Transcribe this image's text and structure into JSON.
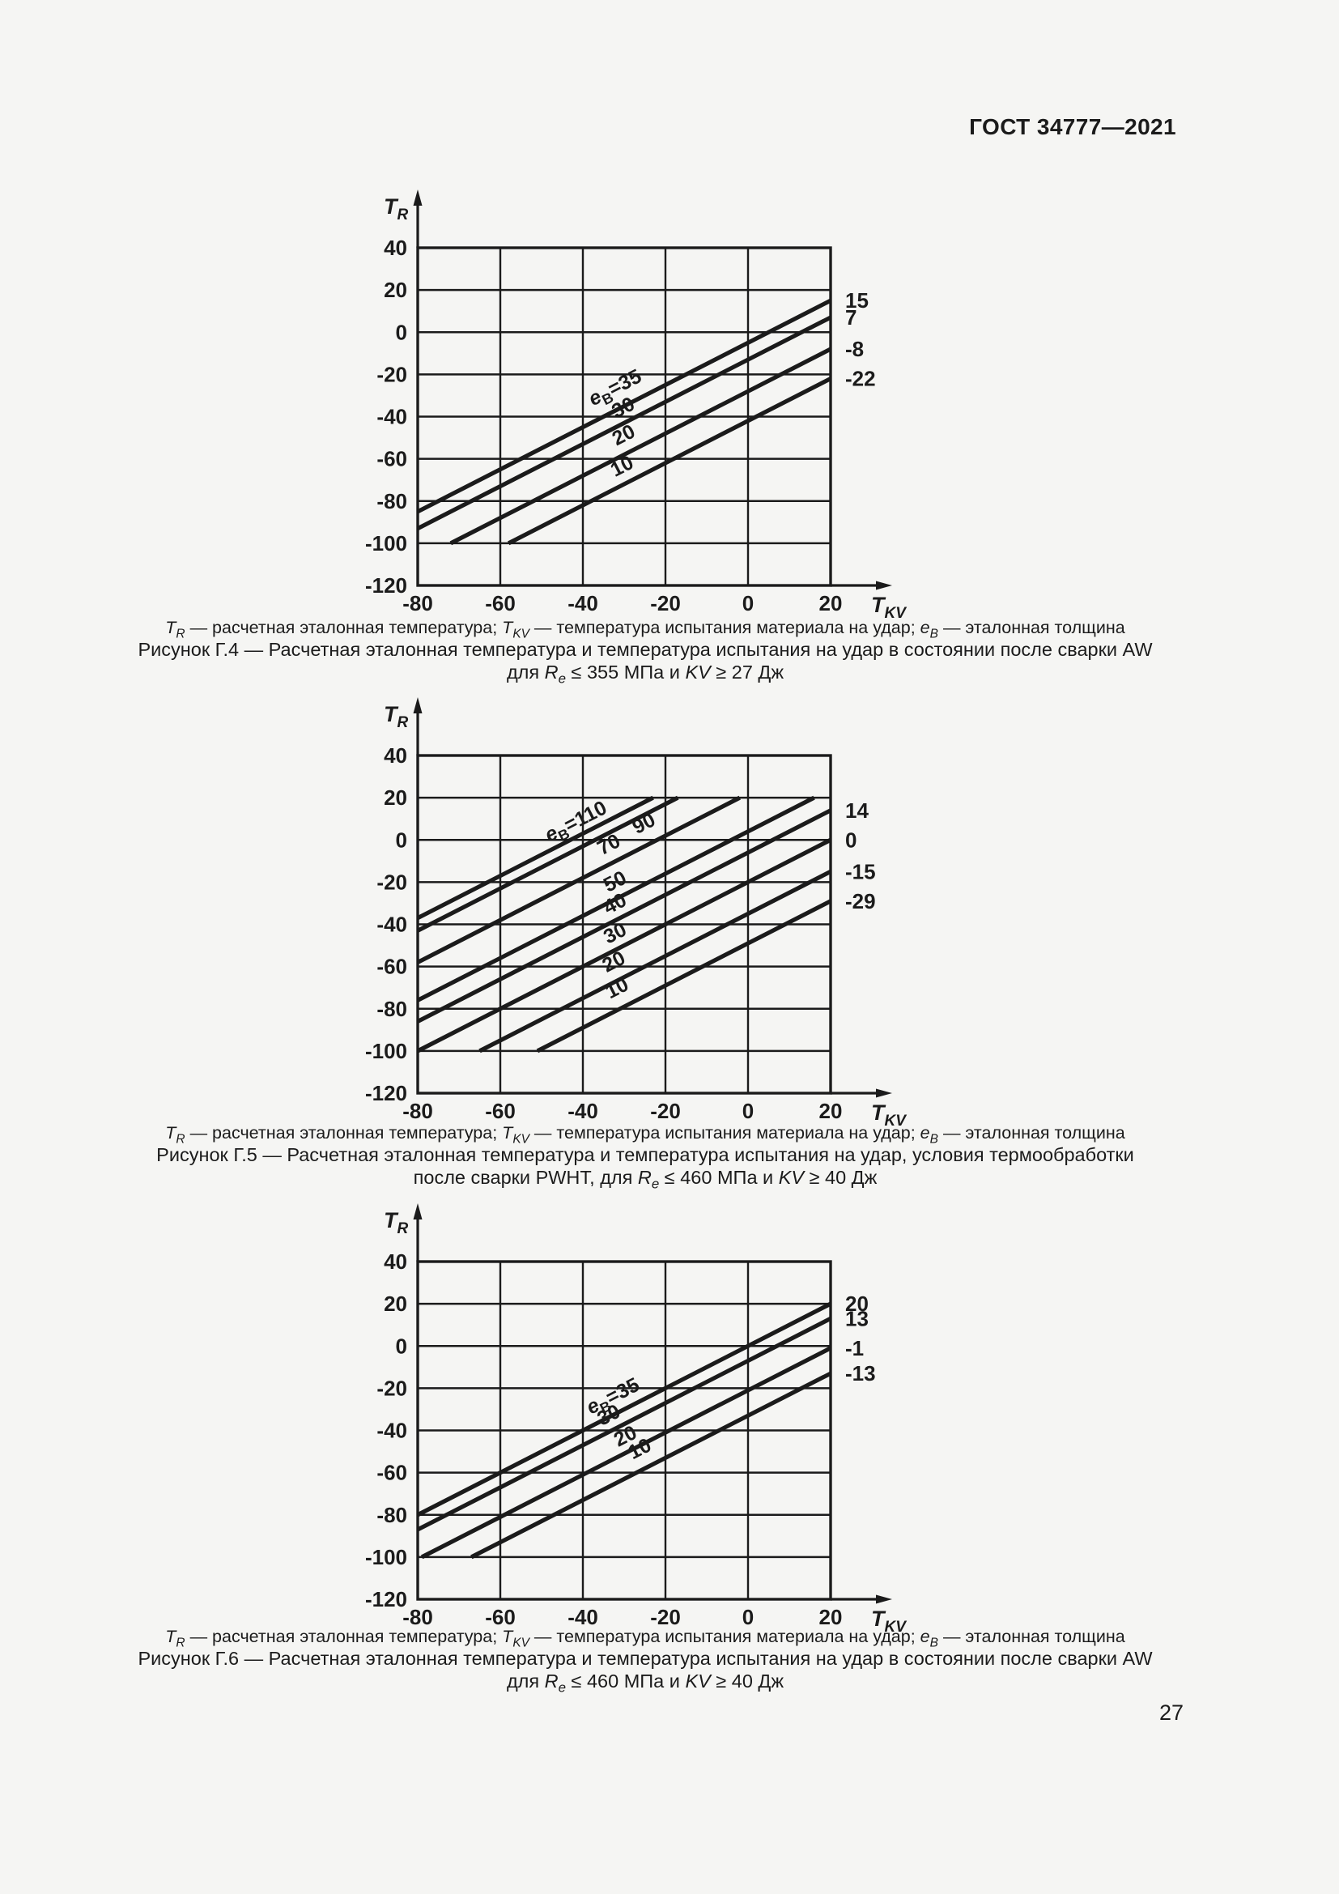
{
  "page": {
    "header": "ГОСТ 34777—2021",
    "page_number": "27",
    "background_color": "#f5f5f3",
    "ink_color": "#1b1b1b"
  },
  "chart_data": [
    {
      "type": "line",
      "figure": "Рисунок Г.4",
      "title": "Расчетная эталонная температура и температура испытания на удар в состоянии после сварки AW для Re ≤ 355 МПа и KV ≥ 27 Дж",
      "xlabel": {
        "base": "T",
        "sub": "KV"
      },
      "ylabel": {
        "base": "T",
        "sub": "R"
      },
      "series_symbol": {
        "base": "e",
        "sub": "B"
      },
      "xlim": [
        -80,
        20
      ],
      "ylim": [
        -120,
        40
      ],
      "xticks": [
        -80,
        -60,
        -40,
        -20,
        0,
        20
      ],
      "yticks": [
        40,
        20,
        0,
        -20,
        -40,
        -60,
        -80,
        -100,
        -120
      ],
      "grid": true,
      "slope": 1,
      "line_clip_min_y": -100,
      "line_clip_max_y": 40,
      "series": [
        {
          "eB": "35",
          "intercept": -5,
          "right_label": "15",
          "label": {
            "value": "35",
            "with_prefix": true,
            "x": -31.5,
            "y": -29
          }
        },
        {
          "eB": "30",
          "intercept": -13,
          "right_label": "7",
          "label": {
            "value": "30",
            "with_prefix": false,
            "x": -29.5,
            "y": -38.5
          }
        },
        {
          "eB": "20",
          "intercept": -28,
          "right_label": "-8",
          "label": {
            "value": "20",
            "with_prefix": false,
            "x": -29.4,
            "y": -51.5
          }
        },
        {
          "eB": "10",
          "intercept": -42,
          "right_label": "-22",
          "label": {
            "value": "10",
            "with_prefix": false,
            "x": -29.8,
            "y": -66.3
          }
        }
      ],
      "caption": {
        "legend": [
          [
            "T",
            "i"
          ],
          [
            "R",
            "s"
          ],
          [
            " — расчетная эталонная температура; ",
            "n"
          ],
          [
            "T",
            "i"
          ],
          [
            "KV",
            "s"
          ],
          [
            " — температура испытания материала на удар; ",
            "n"
          ],
          [
            "e",
            "i"
          ],
          [
            "B",
            "s"
          ],
          [
            " — эталонная толщина",
            "n"
          ]
        ],
        "line1": [
          [
            "Рисунок Г.4 — Расчетная эталонная температура и температура испытания на удар в состоянии после сварки AW",
            "n"
          ]
        ],
        "line2": [
          [
            "для ",
            "n"
          ],
          [
            "R",
            "i"
          ],
          [
            "e",
            "s"
          ],
          [
            " ≤ 355 МПа и ",
            "n"
          ],
          [
            "KV",
            "i"
          ],
          [
            " ≥ 27 Дж",
            "n"
          ]
        ]
      }
    },
    {
      "type": "line",
      "figure": "Рисунок Г.5",
      "title": "Расчетная эталонная температура и температура испытания на удар, условия термообработки после сварки PWHT, для Re ≤ 460 МПа и KV ≥ 40 Дж",
      "xlabel": {
        "base": "T",
        "sub": "KV"
      },
      "ylabel": {
        "base": "T",
        "sub": "R"
      },
      "series_symbol": {
        "base": "e",
        "sub": "B"
      },
      "xlim": [
        -80,
        20
      ],
      "ylim": [
        -120,
        40
      ],
      "xticks": [
        -80,
        -60,
        -40,
        -20,
        0,
        20
      ],
      "yticks": [
        40,
        20,
        0,
        -20,
        -40,
        -60,
        -80,
        -100,
        -120
      ],
      "grid": true,
      "slope": 1,
      "line_clip_min_y": -100,
      "line_clip_max_y": 20,
      "series": [
        {
          "eB": "110",
          "intercept": 43,
          "right_label": null,
          "label": {
            "value": "110",
            "with_prefix": true,
            "x": -41,
            "y": 6
          }
        },
        {
          "eB": "90",
          "intercept": 37,
          "right_label": null,
          "label": {
            "value": "90",
            "with_prefix": false,
            "x": -24.5,
            "y": 5
          }
        },
        {
          "eB": "70",
          "intercept": 22,
          "right_label": null,
          "label": {
            "value": "70",
            "with_prefix": false,
            "x": -33,
            "y": -5
          }
        },
        {
          "eB": "50",
          "intercept": 4,
          "right_label": null,
          "label": {
            "value": "50",
            "with_prefix": false,
            "x": -31.5,
            "y": -22.5
          }
        },
        {
          "eB": "40",
          "intercept": -6,
          "right_label": "14",
          "label": {
            "value": "40",
            "with_prefix": false,
            "x": -31.5,
            "y": -33
          }
        },
        {
          "eB": "30",
          "intercept": -20,
          "right_label": "0",
          "label": {
            "value": "30",
            "with_prefix": false,
            "x": -31.5,
            "y": -47
          }
        },
        {
          "eB": "20",
          "intercept": -35,
          "right_label": "-15",
          "label": {
            "value": "20",
            "with_prefix": false,
            "x": -31.8,
            "y": -60.5
          }
        },
        {
          "eB": "10",
          "intercept": -49,
          "right_label": "-29",
          "label": {
            "value": "10",
            "with_prefix": false,
            "x": -31,
            "y": -73
          }
        }
      ],
      "caption": {
        "legend": [
          [
            "T",
            "i"
          ],
          [
            "R",
            "s"
          ],
          [
            " — расчетная эталонная температура; ",
            "n"
          ],
          [
            "T",
            "i"
          ],
          [
            "KV",
            "s"
          ],
          [
            " — температура испытания материала на удар; ",
            "n"
          ],
          [
            "e",
            "i"
          ],
          [
            "B",
            "s"
          ],
          [
            " — эталонная толщина",
            "n"
          ]
        ],
        "line1": [
          [
            "Рисунок Г.5 — Расчетная эталонная температура и температура испытания на удар, условия термообработки",
            "n"
          ]
        ],
        "line2": [
          [
            "после сварки PWHT, для ",
            "n"
          ],
          [
            "R",
            "i"
          ],
          [
            "e",
            "s"
          ],
          [
            " ≤ 460 МПа и ",
            "n"
          ],
          [
            "KV",
            "i"
          ],
          [
            " ≥ 40 Дж",
            "n"
          ]
        ]
      }
    },
    {
      "type": "line",
      "figure": "Рисунок Г.6",
      "title": "Расчетная эталонная температура и температура испытания на удар в состоянии после сварки AW для Re ≤ 460 МПа и KV ≥ 40 Дж",
      "xlabel": {
        "base": "T",
        "sub": "KV"
      },
      "ylabel": {
        "base": "T",
        "sub": "R"
      },
      "series_symbol": {
        "base": "e",
        "sub": "B"
      },
      "xlim": [
        -80,
        20
      ],
      "ylim": [
        -120,
        40
      ],
      "xticks": [
        -80,
        -60,
        -40,
        -20,
        0,
        20
      ],
      "yticks": [
        40,
        20,
        0,
        -20,
        -40,
        -60,
        -80,
        -100,
        -120
      ],
      "grid": true,
      "slope": 1,
      "line_clip_min_y": -100,
      "line_clip_max_y": 40,
      "series": [
        {
          "eB": "35",
          "intercept": 0,
          "right_label": "20",
          "label": {
            "value": "35",
            "with_prefix": true,
            "x": -32,
            "y": -26.5
          }
        },
        {
          "eB": "30",
          "intercept": -7,
          "right_label": "13",
          "label": {
            "value": "30",
            "with_prefix": false,
            "x": -33,
            "y": -35.5
          }
        },
        {
          "eB": "20",
          "intercept": -21,
          "right_label": "-1",
          "label": {
            "value": "20",
            "with_prefix": false,
            "x": -29,
            "y": -45.5
          }
        },
        {
          "eB": "10",
          "intercept": -33,
          "right_label": "-13",
          "label": {
            "value": "10",
            "with_prefix": false,
            "x": -25.5,
            "y": -51.5
          }
        }
      ],
      "caption": {
        "legend": [
          [
            "T",
            "i"
          ],
          [
            "R",
            "s"
          ],
          [
            " — расчетная эталонная температура; ",
            "n"
          ],
          [
            "T",
            "i"
          ],
          [
            "KV",
            "s"
          ],
          [
            " — температура испытания материала на удар; ",
            "n"
          ],
          [
            "e",
            "i"
          ],
          [
            "B",
            "s"
          ],
          [
            " — эталонная толщина",
            "n"
          ]
        ],
        "line1": [
          [
            "Рисунок Г.6 — Расчетная эталонная температура и температура испытания на удар в состоянии после сварки AW",
            "n"
          ]
        ],
        "line2": [
          [
            "для ",
            "n"
          ],
          [
            "R",
            "i"
          ],
          [
            "e",
            "s"
          ],
          [
            " ≤ 460 МПа и ",
            "n"
          ],
          [
            "KV",
            "i"
          ],
          [
            " ≥ 40 Дж",
            "n"
          ]
        ]
      }
    }
  ]
}
